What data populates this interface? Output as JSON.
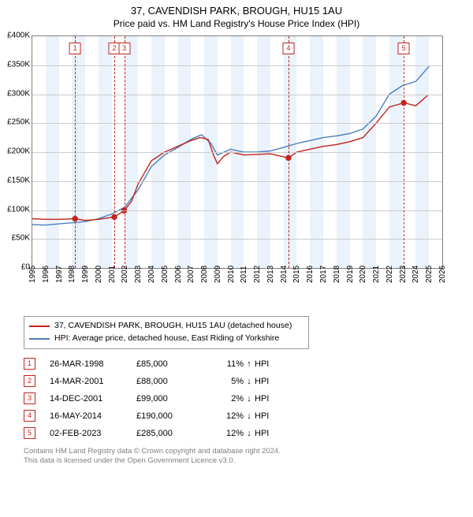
{
  "title": {
    "main": "37, CAVENDISH PARK, BROUGH, HU15 1AU",
    "sub": "Price paid vs. HM Land Registry's House Price Index (HPI)"
  },
  "chart": {
    "type": "line",
    "x_min": 1995,
    "x_max": 2026,
    "y_min": 0,
    "y_max": 400000,
    "y_ticks": [
      0,
      50000,
      100000,
      150000,
      200000,
      250000,
      300000,
      350000,
      400000
    ],
    "y_tick_labels": [
      "£0",
      "£50K",
      "£100K",
      "£150K",
      "£200K",
      "£250K",
      "£300K",
      "£350K",
      "£400K"
    ],
    "x_ticks": [
      1995,
      1996,
      1997,
      1998,
      1999,
      2000,
      2001,
      2002,
      2003,
      2004,
      2005,
      2006,
      2007,
      2008,
      2009,
      2010,
      2011,
      2012,
      2013,
      2014,
      2015,
      2016,
      2017,
      2018,
      2019,
      2020,
      2021,
      2022,
      2023,
      2024,
      2025,
      2026
    ],
    "grid_color": "#cccccc",
    "band_color": "#eaf2fb",
    "band_years": [
      1996,
      1998,
      2000,
      2002,
      2004,
      2006,
      2008,
      2010,
      2012,
      2014,
      2016,
      2018,
      2020,
      2022,
      2024
    ],
    "series": [
      {
        "name": "price_paid",
        "color": "#c2241c",
        "points": [
          [
            1995.0,
            85000
          ],
          [
            1996.0,
            84000
          ],
          [
            1997.0,
            84000
          ],
          [
            1998.2,
            85000
          ],
          [
            1999.0,
            82000
          ],
          [
            2000.0,
            84000
          ],
          [
            2001.2,
            88000
          ],
          [
            2001.95,
            99000
          ],
          [
            2002.5,
            115000
          ],
          [
            2003.0,
            145000
          ],
          [
            2003.5,
            165000
          ],
          [
            2004.0,
            185000
          ],
          [
            2005.0,
            200000
          ],
          [
            2006.0,
            210000
          ],
          [
            2007.0,
            220000
          ],
          [
            2007.7,
            225000
          ],
          [
            2008.3,
            222000
          ],
          [
            2008.7,
            195000
          ],
          [
            2009.0,
            180000
          ],
          [
            2009.5,
            193000
          ],
          [
            2010.0,
            200000
          ],
          [
            2011.0,
            195000
          ],
          [
            2012.0,
            196000
          ],
          [
            2013.0,
            197000
          ],
          [
            2014.37,
            190000
          ],
          [
            2015.0,
            200000
          ],
          [
            2016.0,
            205000
          ],
          [
            2017.0,
            210000
          ],
          [
            2018.0,
            213000
          ],
          [
            2019.0,
            218000
          ],
          [
            2020.0,
            225000
          ],
          [
            2021.0,
            250000
          ],
          [
            2022.0,
            278000
          ],
          [
            2023.1,
            285000
          ],
          [
            2024.0,
            280000
          ],
          [
            2024.9,
            298000
          ]
        ]
      },
      {
        "name": "hpi",
        "color": "#4a7ebb",
        "points": [
          [
            1995.0,
            75000
          ],
          [
            1996.0,
            74000
          ],
          [
            1997.0,
            76000
          ],
          [
            1998.0,
            78000
          ],
          [
            1999.0,
            80000
          ],
          [
            2000.0,
            85000
          ],
          [
            2001.0,
            93000
          ],
          [
            2002.0,
            105000
          ],
          [
            2003.0,
            135000
          ],
          [
            2004.0,
            175000
          ],
          [
            2005.0,
            195000
          ],
          [
            2006.0,
            208000
          ],
          [
            2007.0,
            222000
          ],
          [
            2007.8,
            230000
          ],
          [
            2008.5,
            215000
          ],
          [
            2009.0,
            195000
          ],
          [
            2009.5,
            200000
          ],
          [
            2010.0,
            205000
          ],
          [
            2011.0,
            200000
          ],
          [
            2012.0,
            200000
          ],
          [
            2013.0,
            202000
          ],
          [
            2014.0,
            208000
          ],
          [
            2015.0,
            215000
          ],
          [
            2016.0,
            220000
          ],
          [
            2017.0,
            225000
          ],
          [
            2018.0,
            228000
          ],
          [
            2019.0,
            232000
          ],
          [
            2020.0,
            240000
          ],
          [
            2021.0,
            262000
          ],
          [
            2022.0,
            300000
          ],
          [
            2023.0,
            315000
          ],
          [
            2024.0,
            322000
          ],
          [
            2025.0,
            348000
          ]
        ]
      }
    ],
    "markers": [
      {
        "x": 1998.23,
        "y": 85000
      },
      {
        "x": 2001.2,
        "y": 88000
      },
      {
        "x": 2001.95,
        "y": 99000
      },
      {
        "x": 2014.37,
        "y": 190000
      },
      {
        "x": 2023.09,
        "y": 285000
      }
    ],
    "event_lines": [
      {
        "n": "1",
        "x": 1998.23
      },
      {
        "n": "2",
        "x": 2001.2
      },
      {
        "n": "3",
        "x": 2001.95
      },
      {
        "n": "4",
        "x": 2014.37
      },
      {
        "n": "5",
        "x": 2023.09
      }
    ],
    "event_line_color": "#c2241c"
  },
  "legend": {
    "items": [
      {
        "color": "#c2241c",
        "label": "37, CAVENDISH PARK, BROUGH, HU15 1AU (detached house)"
      },
      {
        "color": "#4a7ebb",
        "label": "HPI: Average price, detached house, East Riding of Yorkshire"
      }
    ]
  },
  "events": [
    {
      "n": "1",
      "date": "26-MAR-1998",
      "price": "£85,000",
      "pct": "11%",
      "dir": "↑",
      "suffix": "HPI"
    },
    {
      "n": "2",
      "date": "14-MAR-2001",
      "price": "£88,000",
      "pct": "5%",
      "dir": "↓",
      "suffix": "HPI"
    },
    {
      "n": "3",
      "date": "14-DEC-2001",
      "price": "£99,000",
      "pct": "2%",
      "dir": "↓",
      "suffix": "HPI"
    },
    {
      "n": "4",
      "date": "16-MAY-2014",
      "price": "£190,000",
      "pct": "12%",
      "dir": "↓",
      "suffix": "HPI"
    },
    {
      "n": "5",
      "date": "02-FEB-2023",
      "price": "£285,000",
      "pct": "12%",
      "dir": "↓",
      "suffix": "HPI"
    }
  ],
  "footer": {
    "l1": "Contains HM Land Registry data © Crown copyright and database right 2024.",
    "l2": "This data is licensed under the Open Government Licence v3.0."
  }
}
